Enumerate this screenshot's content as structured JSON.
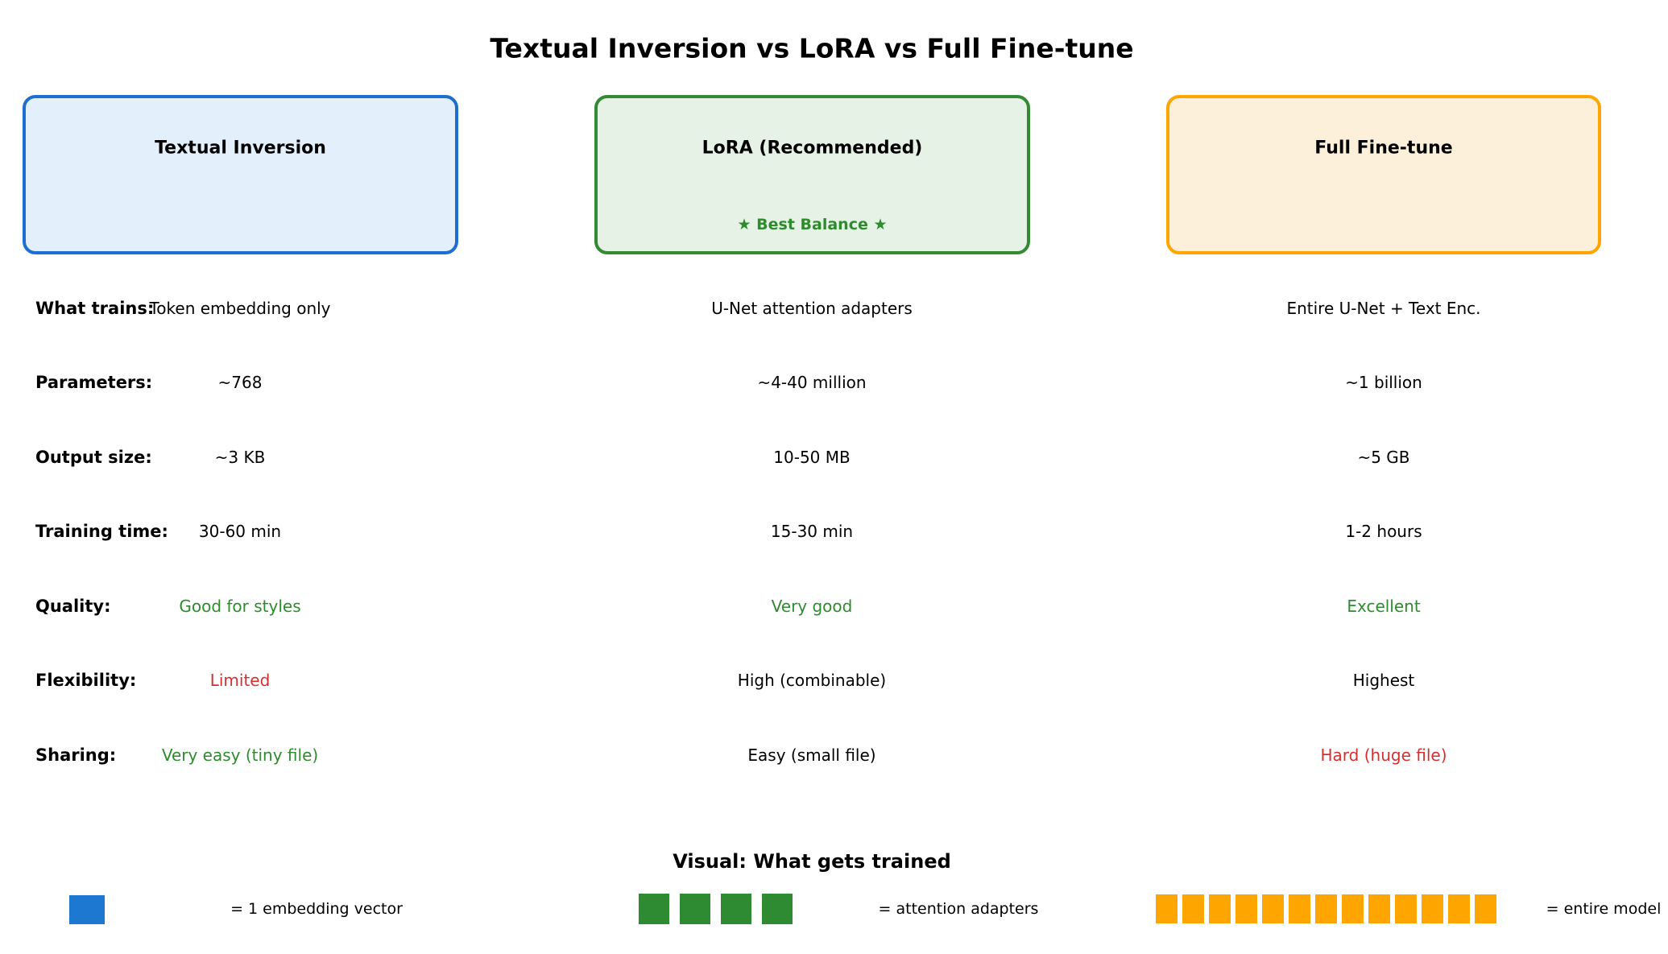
{
  "title": "Textual Inversion vs LoRA vs Full Fine-tune",
  "columns": [
    {
      "name": "Textual Inversion",
      "badge": "",
      "accent": "#1c6fd1",
      "fill": "#e3effa"
    },
    {
      "name": "LoRA (Recommended)",
      "badge": "★ Best Balance ★",
      "accent": "#338a33",
      "fill": "#e7f2e7",
      "badge_color": "#2e8b2e"
    },
    {
      "name": "Full Fine-tune",
      "badge": "",
      "accent": "#ffa500",
      "fill": "#fdf0da"
    }
  ],
  "rows": [
    {
      "label": "What trains:",
      "cells": [
        {
          "text": "Token embedding only",
          "color": "#000000"
        },
        {
          "text": "U-Net attention adapters",
          "color": "#000000"
        },
        {
          "text": "Entire U-Net + Text Enc.",
          "color": "#000000"
        }
      ]
    },
    {
      "label": "Parameters:",
      "cells": [
        {
          "text": "~768",
          "color": "#000000"
        },
        {
          "text": "~4-40 million",
          "color": "#000000"
        },
        {
          "text": "~1 billion",
          "color": "#000000"
        }
      ]
    },
    {
      "label": "Output size:",
      "cells": [
        {
          "text": "~3 KB",
          "color": "#000000"
        },
        {
          "text": "10-50 MB",
          "color": "#000000"
        },
        {
          "text": "~5 GB",
          "color": "#000000"
        }
      ]
    },
    {
      "label": "Training time:",
      "cells": [
        {
          "text": "30-60 min",
          "color": "#000000"
        },
        {
          "text": "15-30 min",
          "color": "#000000"
        },
        {
          "text": "1-2 hours",
          "color": "#000000"
        }
      ]
    },
    {
      "label": "Quality:",
      "cells": [
        {
          "text": "Good for styles",
          "color": "#2e8b2e"
        },
        {
          "text": "Very good",
          "color": "#2e8b2e"
        },
        {
          "text": "Excellent",
          "color": "#2e8b2e"
        }
      ]
    },
    {
      "label": "Flexibility:",
      "cells": [
        {
          "text": "Limited",
          "color": "#d62f2f"
        },
        {
          "text": "High (combinable)",
          "color": "#000000"
        },
        {
          "text": "Highest",
          "color": "#000000"
        }
      ]
    },
    {
      "label": "Sharing:",
      "cells": [
        {
          "text": "Very easy (tiny file)",
          "color": "#2e8b2e"
        },
        {
          "text": "Easy (small file)",
          "color": "#000000"
        },
        {
          "text": "Hard (huge file)",
          "color": "#d62f2f"
        }
      ]
    }
  ],
  "visual": {
    "heading": "Visual: What gets trained",
    "legend": [
      {
        "count": 1,
        "color": "#1d78d2",
        "label": "= 1 embedding vector"
      },
      {
        "count": 4,
        "color": "#2e8b32",
        "label": "= attention adapters"
      },
      {
        "count": 13,
        "color": "#ffa500",
        "label": "= entire model"
      }
    ]
  }
}
